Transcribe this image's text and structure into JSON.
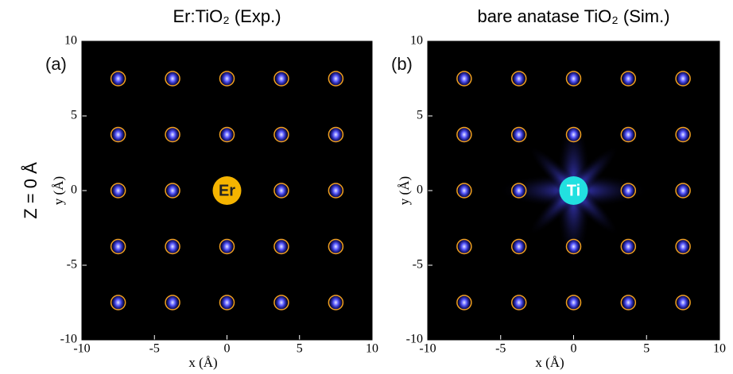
{
  "figure_label": "Z = 0 Å",
  "chart_data": [
    {
      "type": "scatter",
      "title": "Er:TiO₂ (Exp.)",
      "panel_label": "(a)",
      "center_label": "Er",
      "center_color": "#f5b400",
      "xlabel": "x (Å)",
      "ylabel": "y (Å)",
      "xlim": [
        -10,
        10
      ],
      "ylim": [
        -10,
        10
      ],
      "xticks": [
        -10,
        -5,
        0,
        5,
        10
      ],
      "yticks": [
        -10,
        -5,
        0,
        5,
        10
      ],
      "color": "#f0a020",
      "x": [
        -7.5,
        -3.75,
        0,
        3.75,
        7.5,
        -7.5,
        -3.75,
        0,
        3.75,
        7.5,
        -7.5,
        -3.75,
        3.75,
        7.5,
        -7.5,
        -3.75,
        0,
        3.75,
        7.5,
        -7.5,
        -3.75,
        0,
        3.75,
        7.5
      ],
      "y": [
        7.5,
        7.5,
        7.5,
        7.5,
        7.5,
        3.75,
        3.75,
        3.75,
        3.75,
        3.75,
        0,
        0,
        0,
        0,
        -3.75,
        -3.75,
        -3.75,
        -3.75,
        -3.75,
        -7.5,
        -7.5,
        -7.5,
        -7.5,
        -7.5
      ]
    },
    {
      "type": "scatter",
      "title": "bare anatase TiO₂ (Sim.)",
      "panel_label": "(b)",
      "center_label": "Ti",
      "center_color": "#22e0e0",
      "xlabel": "x (Å)",
      "ylabel": "y (Å)",
      "xlim": [
        -10,
        10
      ],
      "ylim": [
        -10,
        10
      ],
      "xticks": [
        -10,
        -5,
        0,
        5,
        10
      ],
      "yticks": [
        -10,
        -5,
        0,
        5,
        10
      ],
      "color": "#f0a020",
      "x": [
        -7.5,
        -3.75,
        0,
        3.75,
        7.5,
        -7.5,
        -3.75,
        0,
        3.75,
        7.5,
        -7.5,
        -3.75,
        3.75,
        7.5,
        -7.5,
        -3.75,
        0,
        3.75,
        7.5,
        -7.5,
        -3.75,
        0,
        3.75,
        7.5
      ],
      "y": [
        7.5,
        7.5,
        7.5,
        7.5,
        7.5,
        3.75,
        3.75,
        3.75,
        3.75,
        3.75,
        0,
        0,
        0,
        0,
        -3.75,
        -3.75,
        -3.75,
        -3.75,
        -3.75,
        -7.5,
        -7.5,
        -7.5,
        -7.5,
        -7.5
      ]
    }
  ]
}
